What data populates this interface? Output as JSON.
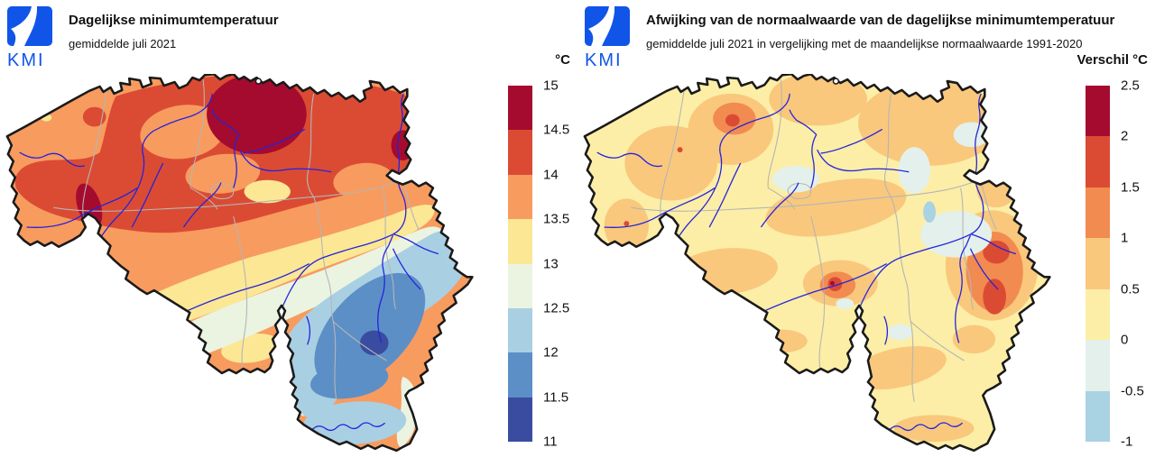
{
  "map": {
    "region": "Belgium",
    "border_color": "#1a1a1a",
    "province_border_color": "#b5b5b5",
    "river_color": "#2323dd",
    "background": "#ffffff"
  },
  "logo": {
    "color": "#1155e8",
    "text": "KMI"
  },
  "panels": [
    {
      "title": "Dagelijkse minimumtemperatuur",
      "subtitle": "gemiddelde juli 2021",
      "legend": {
        "title": "°C",
        "ticks": [
          "15",
          "14.5",
          "14",
          "13.5",
          "13",
          "12.5",
          "12",
          "11.5",
          "11"
        ],
        "colors": [
          "#A50B2E",
          "#DB4B33",
          "#F89B5F",
          "#FCE794",
          "#EAF4E1",
          "#A9CFE3",
          "#5C8FC6",
          "#3A4CA0"
        ]
      }
    },
    {
      "title": "Afwijking van de normaalwaarde van de dagelijkse minimumtemperatuur",
      "subtitle": "gemiddelde juli 2021 in vergelijking met de maandelijkse normaalwaarde 1991-2020",
      "legend": {
        "title": "Verschil °C",
        "ticks": [
          "2.5",
          "2",
          "1.5",
          "1",
          "0.5",
          "0",
          "-0.5",
          "-1"
        ],
        "colors": [
          "#A50B2E",
          "#DB4B33",
          "#F28B50",
          "#F9C87C",
          "#FCEEA6",
          "#E4F0EB",
          "#A9D2E2"
        ]
      }
    }
  ]
}
